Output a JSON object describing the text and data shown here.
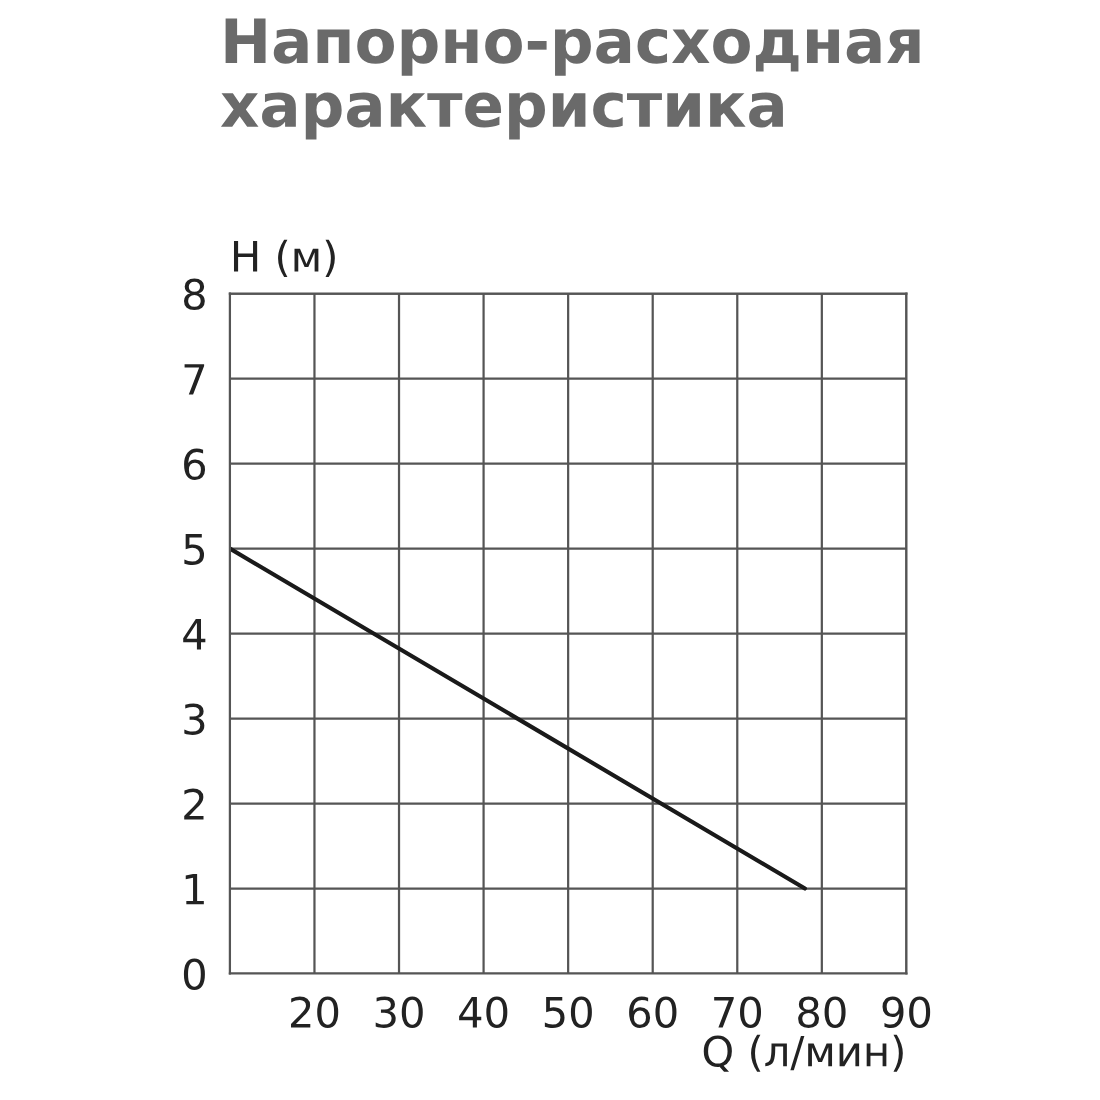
{
  "chart_data": {
    "type": "line",
    "title": "Напорно-расходная\nхарактеристика",
    "xlabel": "Q (л/мин)",
    "ylabel": "H (м)",
    "x": [
      10,
      78
    ],
    "series": [
      {
        "color": "#1a1a1a",
        "values": [
          5,
          1
        ]
      }
    ],
    "xlim": [
      10,
      90
    ],
    "xticks": [
      {
        "value": 10,
        "label": null
      },
      20,
      30,
      40,
      50,
      60,
      70,
      80,
      90
    ],
    "ylim": [
      0,
      8
    ],
    "yticks": [
      0,
      1,
      2,
      3,
      4,
      5,
      6,
      7,
      8
    ],
    "grid": true,
    "marker": "none",
    "line_style": "solid"
  }
}
